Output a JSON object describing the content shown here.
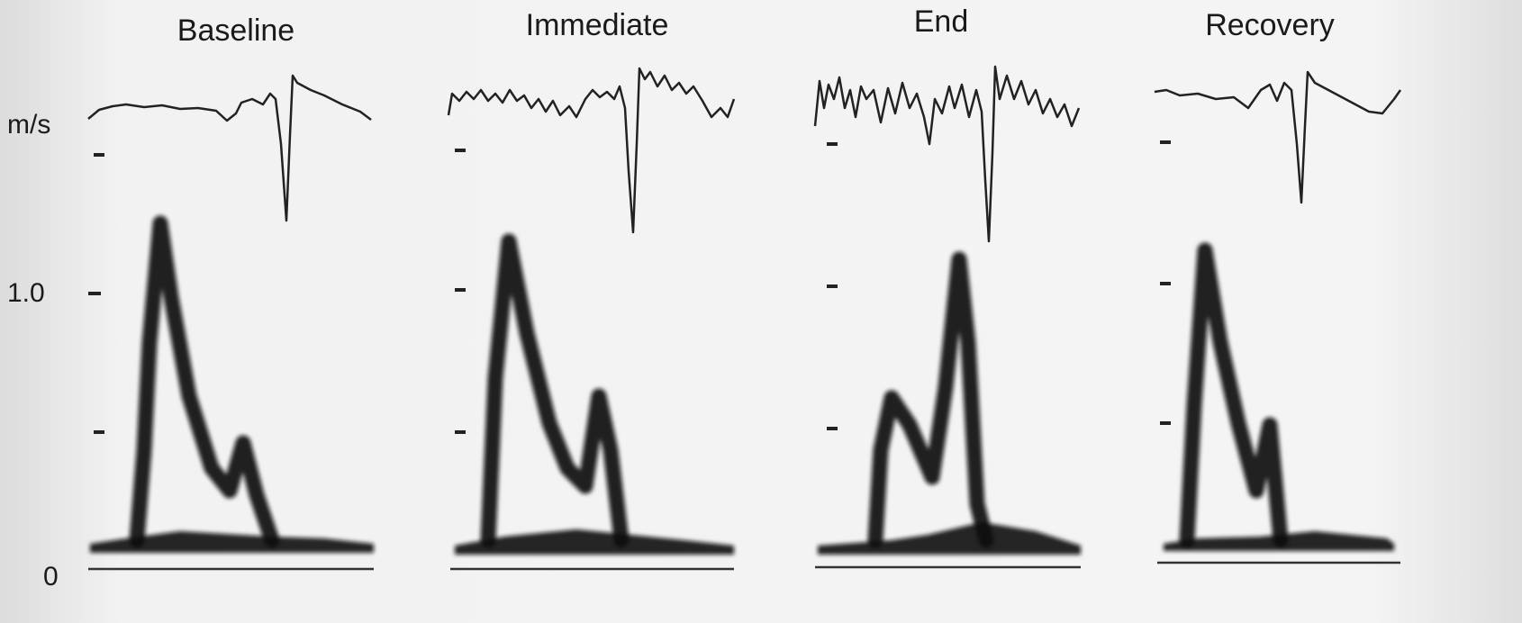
{
  "panels": [
    {
      "title": "Baseline"
    },
    {
      "title": "Immediate"
    },
    {
      "title": "End"
    },
    {
      "title": "Recovery"
    }
  ],
  "axis": {
    "unit": "m/s",
    "labels": [
      "1.0",
      "0"
    ]
  }
}
